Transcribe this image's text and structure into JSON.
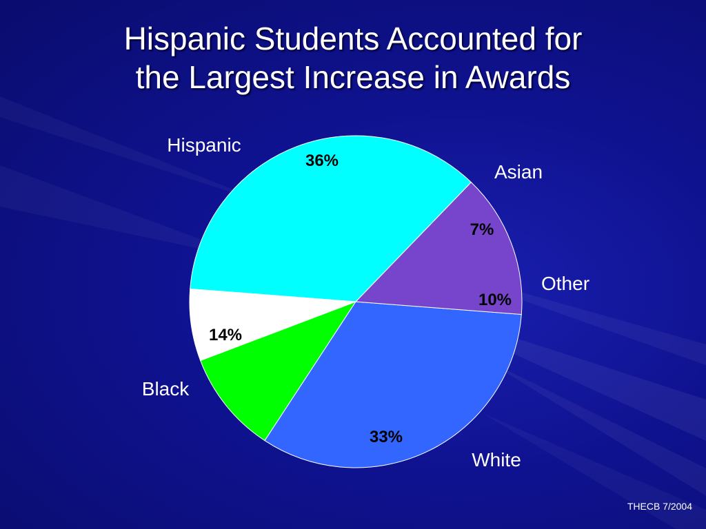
{
  "slide": {
    "title_line1": "Hispanic Students Accounted for",
    "title_line2": "the Largest Increase in Awards",
    "footer": "THECB 7/2004"
  },
  "chart_data": {
    "type": "pie",
    "title": "Hispanic Students Accounted for the Largest Increase in Awards",
    "slices": [
      {
        "label": "Hispanic",
        "value": 36,
        "display": "36%",
        "color": "#00ffff"
      },
      {
        "label": "Asian",
        "value": 7,
        "display": "7%",
        "color": "#ffffff"
      },
      {
        "label": "Other",
        "value": 10,
        "display": "10%",
        "color": "#00ff00"
      },
      {
        "label": "White",
        "value": 33,
        "display": "33%",
        "color": "#3366ff"
      },
      {
        "label": "Black",
        "value": 14,
        "display": "14%",
        "color": "#7744cc"
      }
    ],
    "legend": "none",
    "labels": "category labels outside, percentage labels inside"
  },
  "colors": {
    "background": "#0f128f",
    "text": "#ffffff",
    "value_text": "#000000"
  }
}
